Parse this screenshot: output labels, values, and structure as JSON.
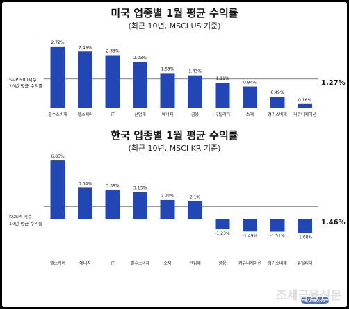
{
  "chart_data": [
    {
      "type": "bar",
      "title": "미국 업종별 1월 평균 수익률",
      "subtitle": "(최근 10년, MSCI US 기준)",
      "categories": [
        "필수소비재",
        "헬스케어",
        "IT",
        "산업재",
        "에너지",
        "금융",
        "유틸리티",
        "소재",
        "경기소비재",
        "커뮤니케이션"
      ],
      "values": [
        2.72,
        2.49,
        2.33,
        2.03,
        1.53,
        1.43,
        1.11,
        0.94,
        0.49,
        0.16
      ],
      "value_labels": [
        "2.72%",
        "2.49%",
        "2.33%",
        "2.03%",
        "1.53%",
        "1.43%",
        "1.11%",
        "0.94%",
        "0.49%",
        "0.16%"
      ],
      "benchmark": {
        "label_line1": "S&P 500지수",
        "label_line2": "10년 평균 수익률",
        "value": 1.27,
        "value_label": "1.27%"
      },
      "ylim": [
        0,
        2.9
      ],
      "bar_color": "#2346b5"
    },
    {
      "type": "bar",
      "title": "한국 업종별 1월 평균 수익률",
      "subtitle": "(최근 10년, MSCI KR 기준)",
      "categories": [
        "헬스케어",
        "에너지",
        "IT",
        "필수소비재",
        "소재",
        "산업재",
        "금융",
        "커뮤니케이션",
        "경기소비재",
        "유틸리티"
      ],
      "values": [
        6.85,
        3.64,
        3.38,
        3.13,
        2.21,
        2.1,
        -1.23,
        -1.49,
        -1.51,
        -1.68
      ],
      "value_labels": [
        "6.85%",
        "3.64%",
        "3.38%",
        "3.13%",
        "2.21%",
        "2.1%",
        "-1.23%",
        "-1.49%",
        "-1.51%",
        "-1.68%"
      ],
      "benchmark": {
        "label_line1": "KOSPI 지수",
        "label_line2": "10년 평균 수익률",
        "value": 1.46,
        "value_label": "1.46%"
      },
      "ylim": [
        -1.9,
        7.1
      ],
      "bar_color": "#2346b5"
    }
  ],
  "watermark": "조세금융신문",
  "watermark_logo": "SAMSUNG"
}
